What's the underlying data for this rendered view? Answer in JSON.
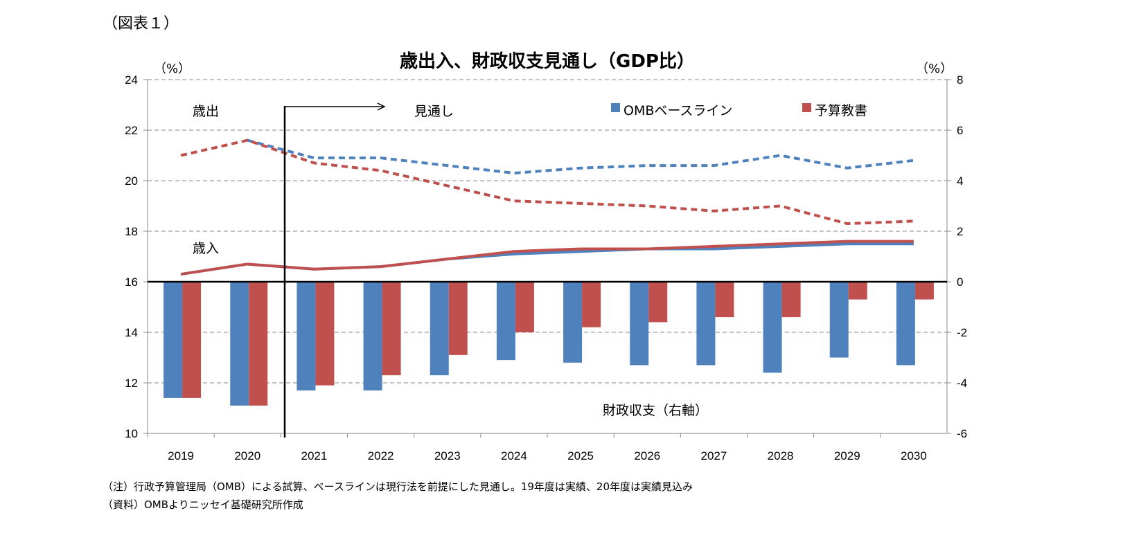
{
  "figure_label": "（図表１）",
  "notes": [
    "（注）行政予算管理局（OMB）による試算、ベースラインは現行法を前提にした見通し。19年度は実績、20年度は実績見込み",
    "（資料）OMBよりニッセイ基礎研究所作成"
  ],
  "chart_data": {
    "type": "bar+line",
    "title": "歳出入、財政収支見通し（GDP比）",
    "ylabel_left": "（%）",
    "ylabel_right": "（%）",
    "ylim_left": [
      10,
      24
    ],
    "ylim_right": [
      -6,
      8
    ],
    "yticks_left": [
      10,
      12,
      14,
      16,
      18,
      20,
      22,
      24
    ],
    "yticks_right": [
      -6,
      -4,
      -2,
      0,
      2,
      4,
      6,
      8
    ],
    "grid": true,
    "legend_placement": "top-right",
    "categories": [
      "2019",
      "2020",
      "2021",
      "2022",
      "2023",
      "2024",
      "2025",
      "2026",
      "2027",
      "2028",
      "2029",
      "2030"
    ],
    "colors": {
      "omb": "#4f81bd",
      "budget": "#c0504d"
    },
    "series": [
      {
        "name": "OMBベースライン",
        "kind": "bar",
        "axis": "right",
        "values": [
          -4.6,
          -4.9,
          -4.3,
          -4.3,
          -3.7,
          -3.1,
          -3.2,
          -3.3,
          -3.3,
          -3.6,
          -3.0,
          -3.3
        ]
      },
      {
        "name": "予算教書",
        "kind": "bar",
        "axis": "right",
        "values": [
          -4.6,
          -4.9,
          -4.1,
          -3.7,
          -2.9,
          -2.0,
          -1.8,
          -1.6,
          -1.4,
          -1.4,
          -0.7,
          -0.7
        ]
      },
      {
        "kind": "dashed-line",
        "axis": "left",
        "color_key": "omb",
        "values": [
          null,
          21.6,
          20.9,
          20.9,
          20.6,
          20.3,
          20.5,
          20.6,
          20.6,
          21.0,
          20.5,
          20.8
        ]
      },
      {
        "kind": "dashed-line",
        "axis": "left",
        "color_key": "budget",
        "values": [
          21.0,
          21.6,
          20.7,
          20.4,
          19.8,
          19.2,
          19.1,
          19.0,
          18.8,
          19.0,
          18.3,
          18.4
        ]
      },
      {
        "kind": "line",
        "axis": "left",
        "color_key": "omb",
        "values": [
          16.3,
          16.7,
          16.5,
          16.6,
          16.9,
          17.1,
          17.2,
          17.3,
          17.3,
          17.4,
          17.5,
          17.5
        ]
      },
      {
        "kind": "line",
        "axis": "left",
        "color_key": "budget",
        "values": [
          16.3,
          16.7,
          16.5,
          16.6,
          16.9,
          17.2,
          17.3,
          17.3,
          17.4,
          17.5,
          17.6,
          17.6
        ]
      }
    ],
    "annotations": {
      "spending": "歳出",
      "revenue": "歳入",
      "projection": "見通し",
      "balance": "財政収支（右軸）"
    }
  }
}
